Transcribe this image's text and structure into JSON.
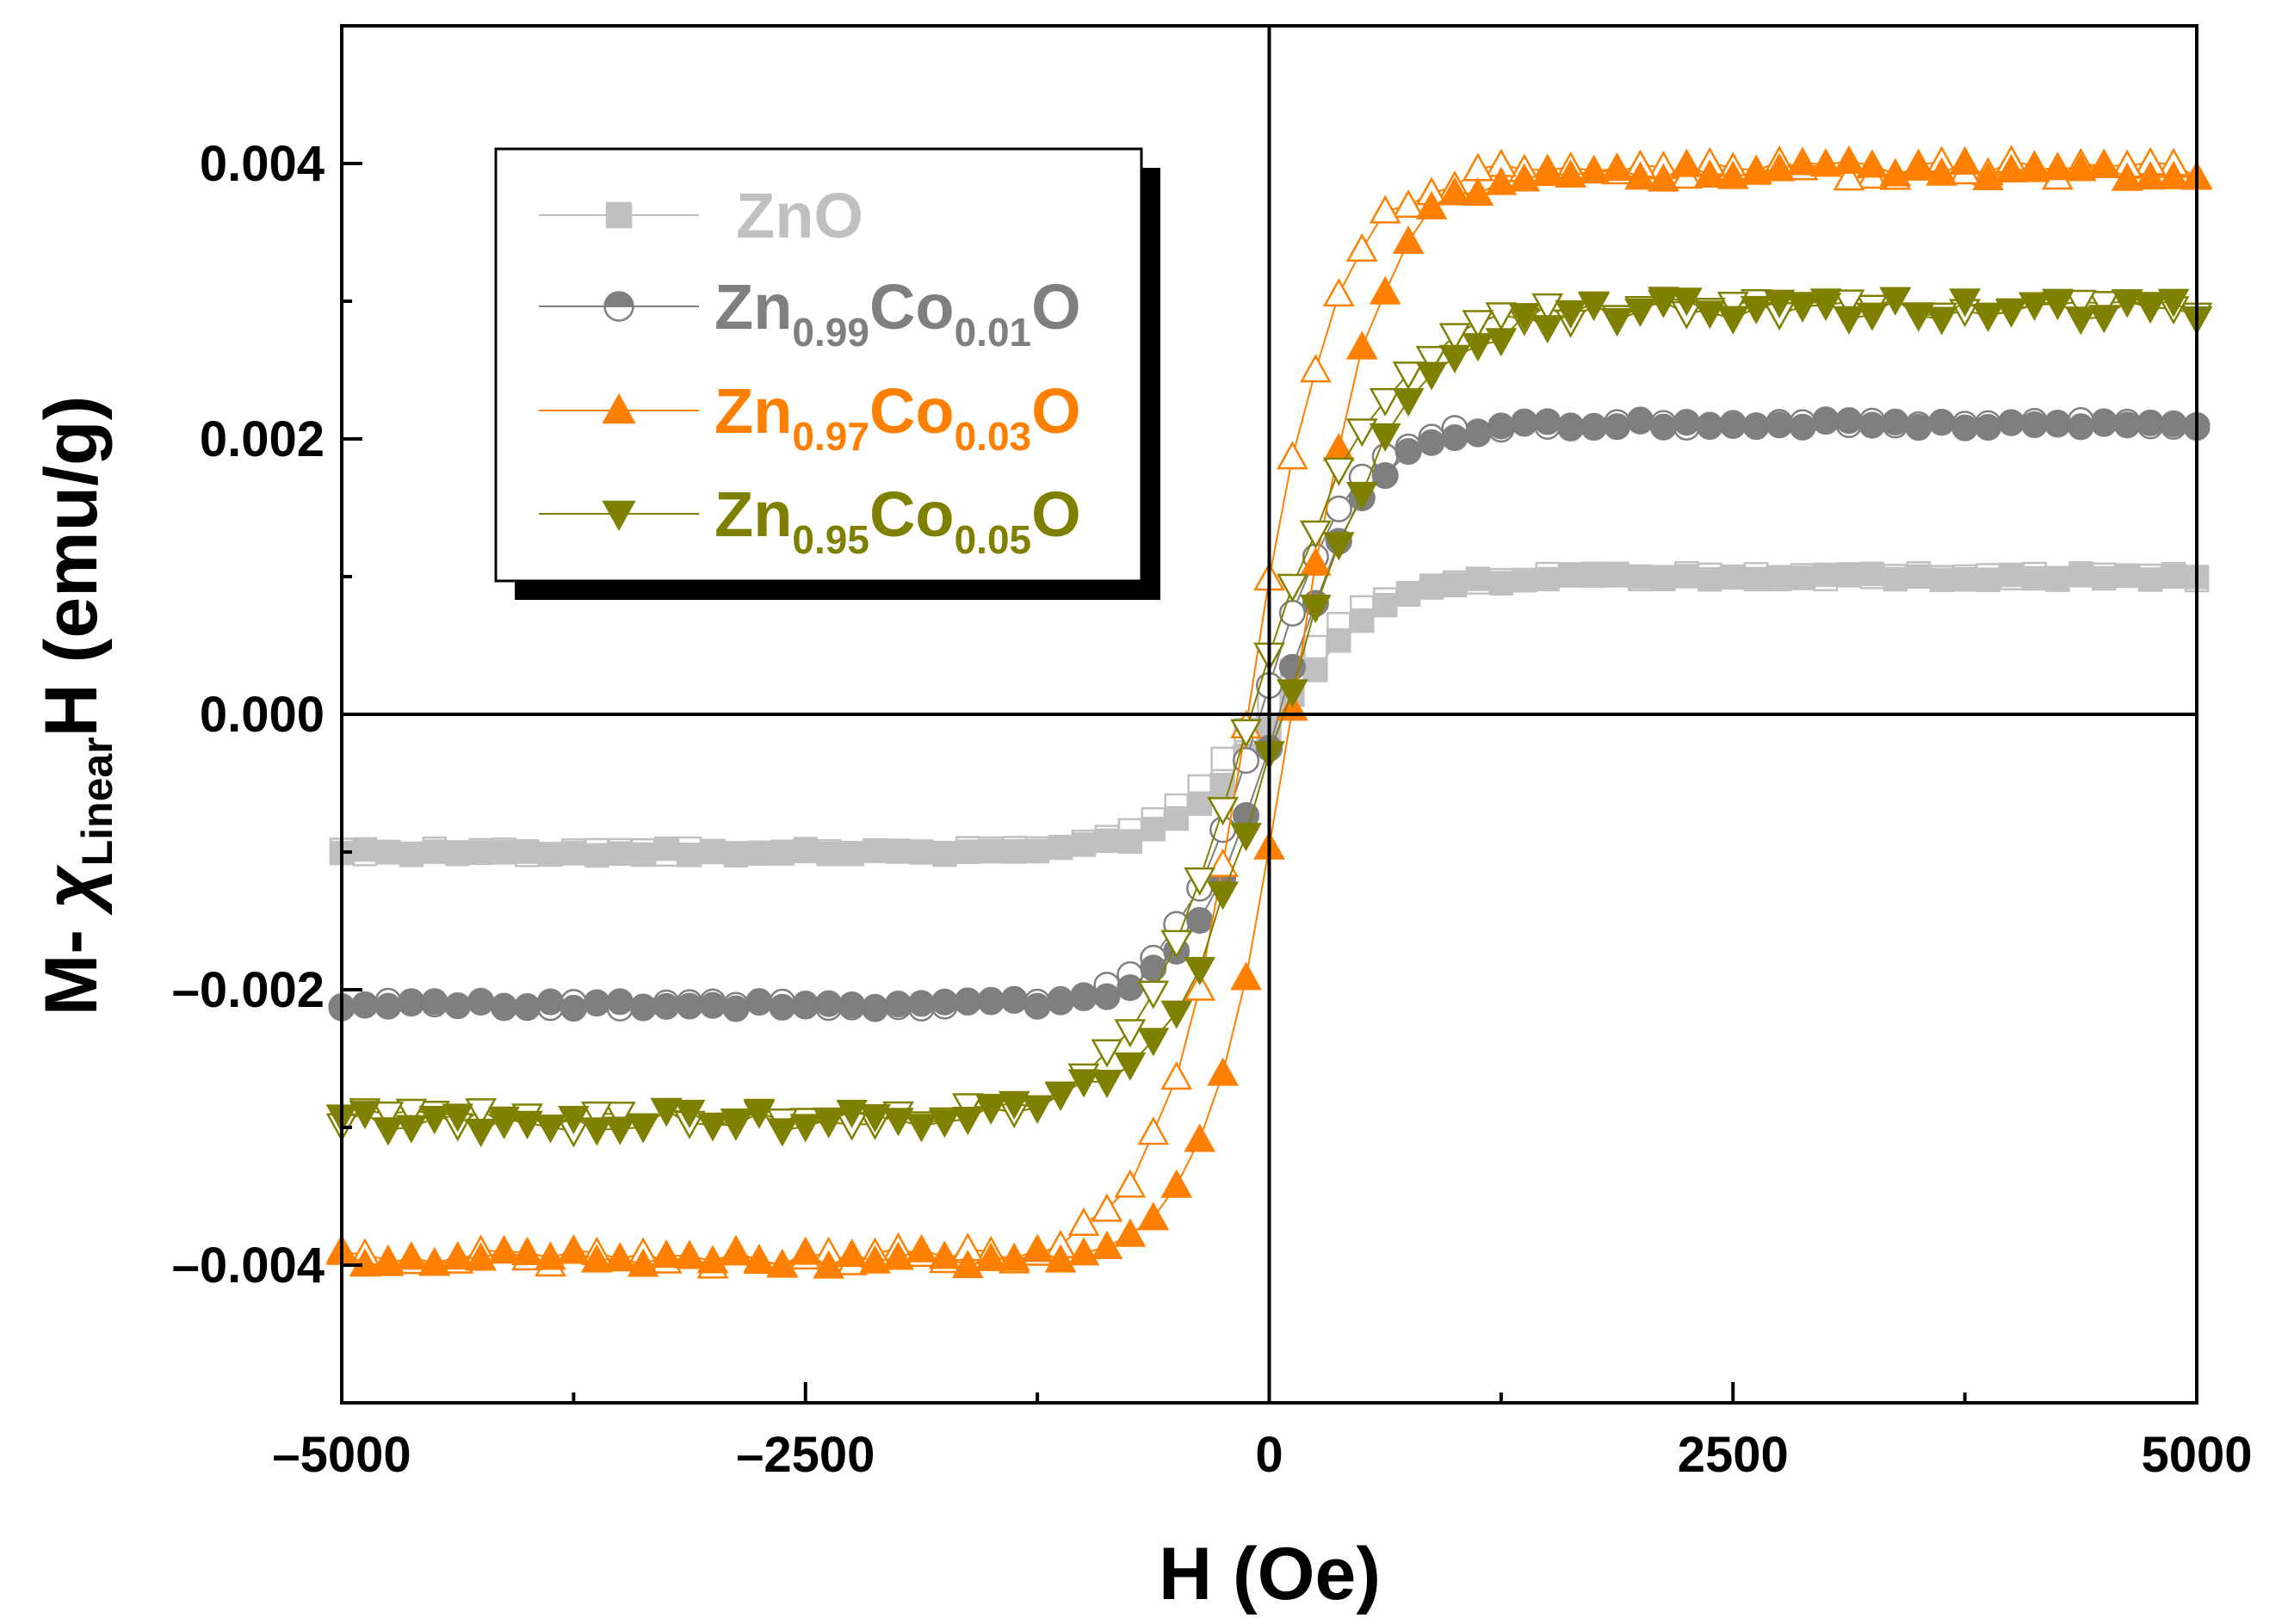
{
  "chart_data": {
    "type": "scatter",
    "title": "",
    "xlabel": "H (Oe)",
    "ylabel": {
      "main": "M- ",
      "chi": "χ",
      "chi_sub": "Linear",
      "after": "H (emu/g)"
    },
    "xlim": [
      -5000,
      5000
    ],
    "ylim": [
      -0.005,
      0.005
    ],
    "xticks": [
      -5000,
      -2500,
      0,
      2500,
      5000
    ],
    "xtick_labels": [
      "–5000",
      "–2500",
      "0",
      "2500",
      "5000"
    ],
    "yticks": [
      -0.004,
      -0.002,
      0.0,
      0.002,
      0.004
    ],
    "ytick_labels": [
      "–0.004",
      "–0.002",
      "0.000",
      "0.002",
      "0.004"
    ],
    "x_minor_step": 1250,
    "y_minor_step": 0.001,
    "grid": false,
    "zero_lines": true,
    "legend_position": "top-left",
    "legend": [
      {
        "name": "ZnO",
        "parts": [
          {
            "t": "ZnO"
          }
        ]
      },
      {
        "name": "Zn0.99Co0.01O",
        "parts": [
          {
            "t": "Zn"
          },
          {
            "t": "0.99",
            "sub": true
          },
          {
            "t": "Co"
          },
          {
            "t": "0.01",
            "sub": true
          },
          {
            "t": "O"
          }
        ]
      },
      {
        "name": "Zn0.97Co0.03O",
        "parts": [
          {
            "t": "Zn"
          },
          {
            "t": "0.97",
            "sub": true
          },
          {
            "t": "Co"
          },
          {
            "t": "0.03",
            "sub": true
          },
          {
            "t": "O"
          }
        ]
      },
      {
        "name": "Zn0.95Co0.05O",
        "parts": [
          {
            "t": "Zn"
          },
          {
            "t": "0.95",
            "sub": true
          },
          {
            "t": "Co"
          },
          {
            "t": "0.05",
            "sub": true
          },
          {
            "t": "O"
          }
        ]
      }
    ],
    "series": [
      {
        "name": "ZnO",
        "color": "#c0c0c0",
        "marker": "square",
        "ms": 0.001,
        "hc": 60,
        "k": 550,
        "noise": 2.5e-05
      },
      {
        "name": "Zn0.99Co0.01O",
        "color": "#7f7f7f",
        "marker": "circle",
        "ms": 0.00211,
        "hc": 50,
        "k": 480,
        "noise": 3e-05
      },
      {
        "name": "Zn0.97Co0.03O",
        "color": "#ff8000",
        "marker": "triangle-up",
        "ms": 0.00395,
        "hc": 120,
        "k": 480,
        "noise": 7e-05
      },
      {
        "name": "Zn0.95Co0.05O",
        "color": "#808000",
        "marker": "triangle-down",
        "ms": 0.00295,
        "hc": 80,
        "k": 650,
        "noise": 8e-05
      }
    ]
  }
}
